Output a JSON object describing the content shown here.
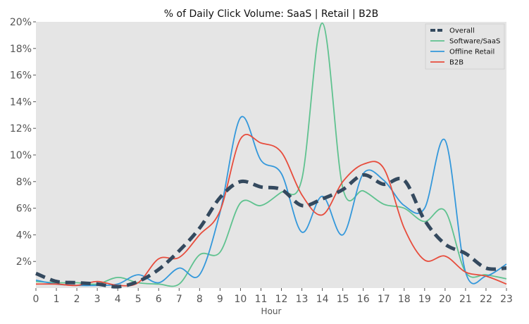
{
  "chart_data": {
    "type": "line",
    "title": "% of Daily Click Volume: SaaS | Retail | B2B",
    "xlabel": "Hour",
    "ylabel": "",
    "x": [
      0,
      1,
      2,
      3,
      4,
      5,
      6,
      7,
      8,
      9,
      10,
      11,
      12,
      13,
      14,
      15,
      16,
      17,
      18,
      19,
      20,
      21,
      22,
      23
    ],
    "x_ticks": [
      "0",
      "1",
      "2",
      "3",
      "4",
      "5",
      "6",
      "7",
      "8",
      "9",
      "10",
      "11",
      "12",
      "13",
      "14",
      "15",
      "16",
      "17",
      "18",
      "19",
      "20",
      "21",
      "22",
      "23"
    ],
    "xlim": [
      0,
      23
    ],
    "ylim": [
      0,
      20
    ],
    "y_ticks": [
      2,
      4,
      6,
      8,
      10,
      12,
      14,
      16,
      18,
      20
    ],
    "y_tick_labels": [
      "2%",
      "4%",
      "6%",
      "8%",
      "10%",
      "12%",
      "14%",
      "16%",
      "18%",
      "20%"
    ],
    "grid": false,
    "legend_position": "top-right",
    "background": "#e5e5e5",
    "series": [
      {
        "name": "Overall",
        "color": "#34495e",
        "style": "dashed",
        "values": [
          1.1,
          0.5,
          0.4,
          0.3,
          0.1,
          0.5,
          1.4,
          2.8,
          4.5,
          6.8,
          8.0,
          7.6,
          7.4,
          6.2,
          6.7,
          7.4,
          8.5,
          7.8,
          8.1,
          5.1,
          3.3,
          2.6,
          1.5,
          1.5
        ]
      },
      {
        "name": "Software/SaaS",
        "color": "#5fc28f",
        "style": "solid",
        "values": [
          0.5,
          0.4,
          0.4,
          0.3,
          0.8,
          0.4,
          0.3,
          0.3,
          2.5,
          2.7,
          6.4,
          6.2,
          7.2,
          8.2,
          19.9,
          7.5,
          7.3,
          6.3,
          6.0,
          5.0,
          5.8,
          1.2,
          1.0,
          0.7
        ]
      },
      {
        "name": "Offline Retail",
        "color": "#3498db",
        "style": "solid",
        "values": [
          0.6,
          0.3,
          0.2,
          0.2,
          0.3,
          1.0,
          0.4,
          1.5,
          1.0,
          5.7,
          12.8,
          9.6,
          8.6,
          4.2,
          6.9,
          4.0,
          8.6,
          8.1,
          6.2,
          6.0,
          11.1,
          1.2,
          0.9,
          1.8
        ]
      },
      {
        "name": "B2B",
        "color": "#e74c3c",
        "style": "solid",
        "values": [
          0.3,
          0.3,
          0.2,
          0.5,
          0.2,
          0.4,
          2.2,
          2.3,
          4.0,
          5.8,
          11.2,
          10.9,
          10.2,
          7.0,
          5.5,
          8.0,
          9.3,
          9.0,
          4.5,
          2.1,
          2.4,
          1.2,
          0.9,
          0.3
        ]
      }
    ]
  }
}
